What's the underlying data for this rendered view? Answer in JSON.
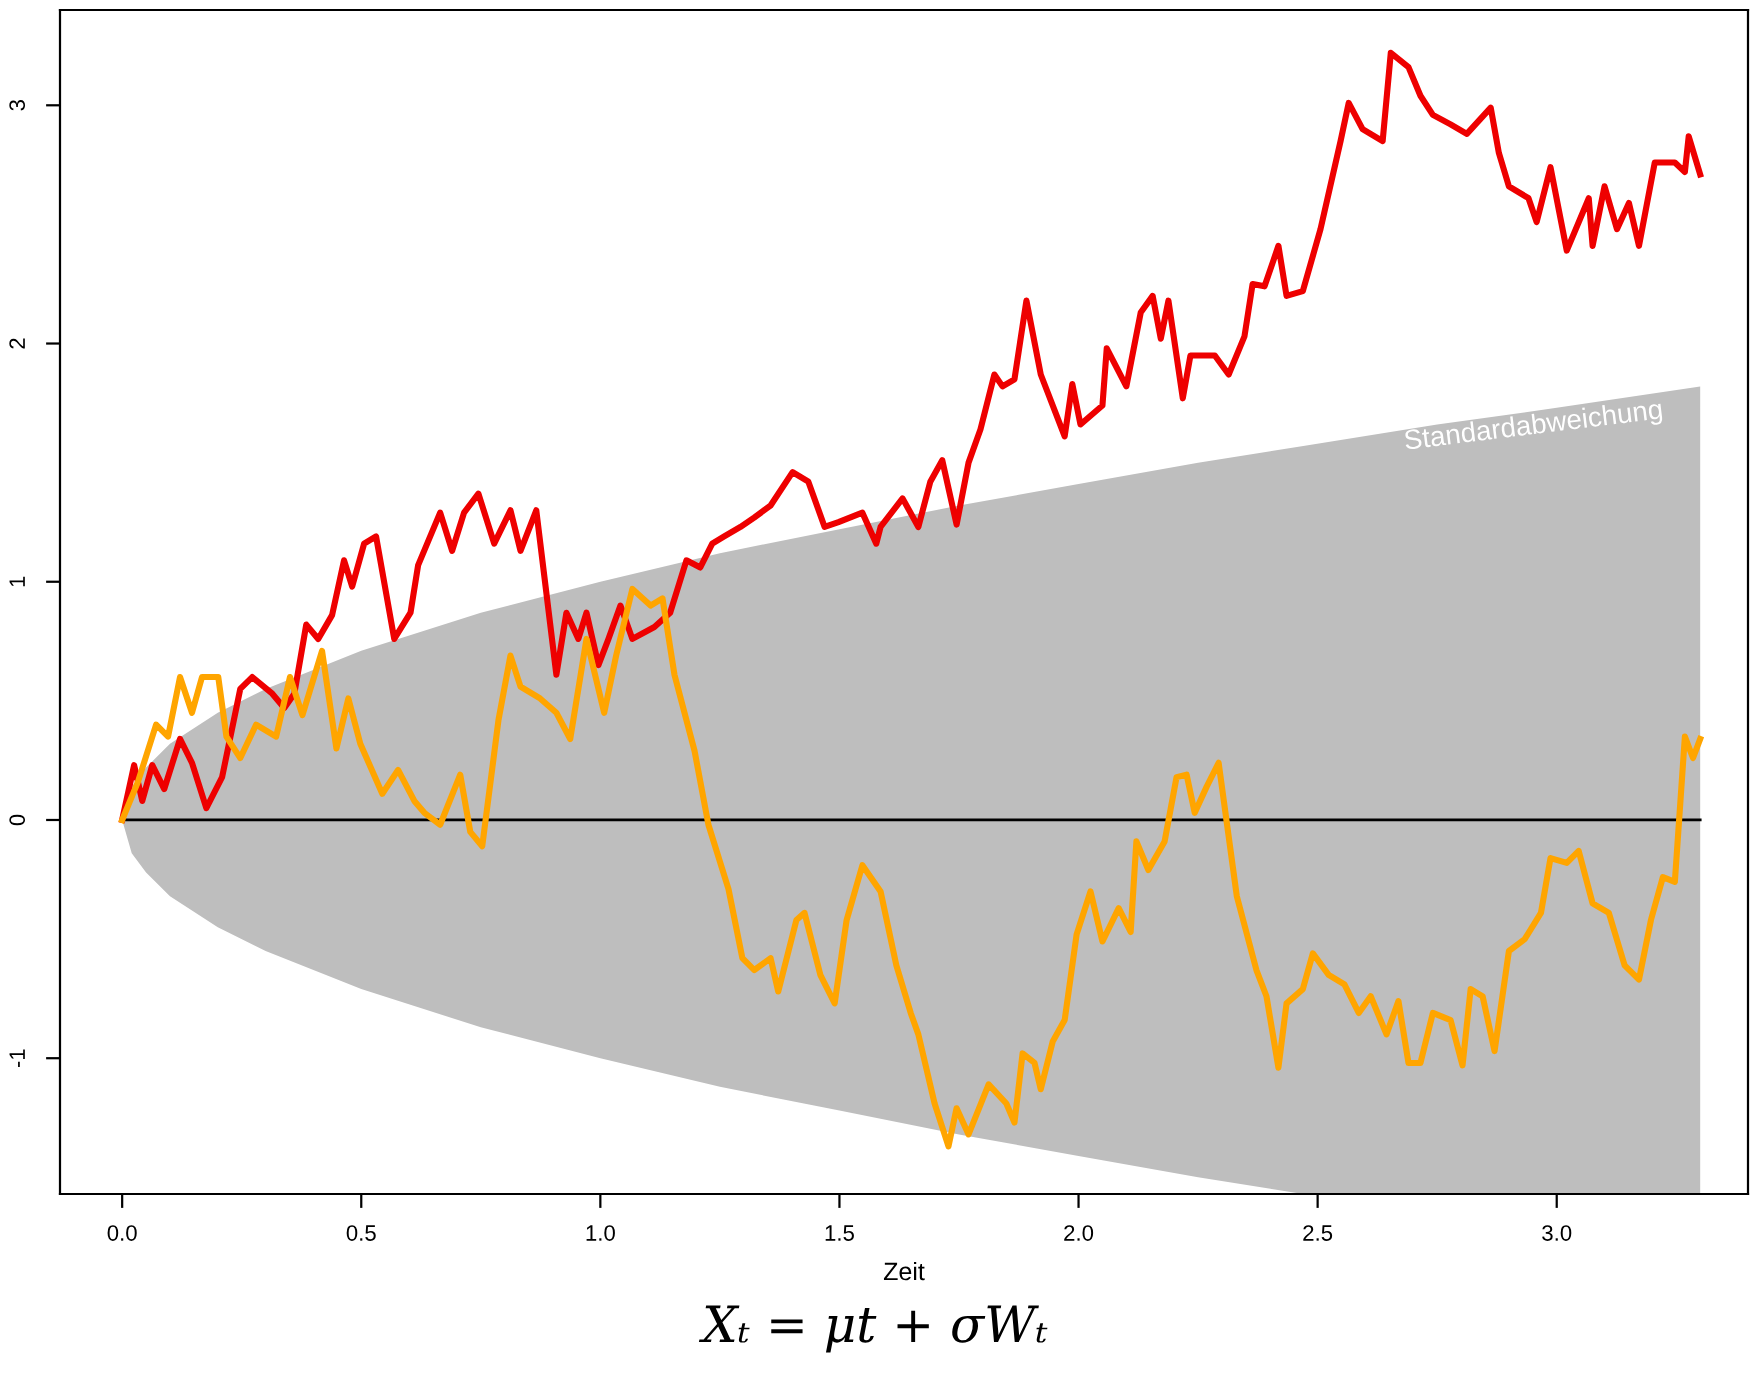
{
  "chart_data": {
    "type": "line",
    "xlabel": "Zeit",
    "xlim": [
      -0.13,
      3.4
    ],
    "ylim": [
      -1.57,
      3.4
    ],
    "xticks": [
      {
        "value": 0,
        "label": "0.0"
      },
      {
        "value": 0.5,
        "label": "0.5"
      },
      {
        "value": 1,
        "label": "1.0"
      },
      {
        "value": 1.5,
        "label": "1.5"
      },
      {
        "value": 2,
        "label": "2.0"
      },
      {
        "value": 2.5,
        "label": "2.5"
      },
      {
        "value": 3,
        "label": "3.0"
      }
    ],
    "yticks": [
      -1,
      0,
      1,
      2,
      3
    ],
    "grid": false,
    "legend": false,
    "line_style": "solid",
    "marker": "none",
    "series": [
      {
        "color": "#000000",
        "x": [
          0,
          0.02,
          0.05,
          0.1,
          0.2,
          0.3,
          0.5,
          0.75,
          1,
          1.25,
          1.5,
          1.75,
          2,
          2.25,
          2.47,
          2.75,
          3,
          3.3
        ],
        "values": [
          0,
          0,
          0,
          0,
          0,
          0,
          0,
          0,
          0,
          0,
          0,
          0,
          0,
          0,
          0,
          0,
          0,
          0
        ],
        "upper": [
          0,
          0.14,
          0.22,
          0.32,
          0.45,
          0.55,
          0.71,
          0.87,
          1.0,
          1.12,
          1.22,
          1.32,
          1.41,
          1.5,
          1.57,
          1.66,
          1.73,
          1.82
        ],
        "lower": [
          0,
          -0.14,
          -0.22,
          -0.32,
          -0.45,
          -0.55,
          -0.71,
          -0.87,
          -1.0,
          -1.12,
          -1.22,
          -1.32,
          -1.41,
          -1.5,
          -1.57,
          -1.57,
          -1.57,
          -1.57
        ]
      },
      {
        "color": "#ee0000",
        "x": [
          0,
          0.025,
          0.042,
          0.063,
          0.088,
          0.121,
          0.146,
          0.176,
          0.209,
          0.247,
          0.272,
          0.314,
          0.339,
          0.36,
          0.385,
          0.41,
          0.439,
          0.464,
          0.481,
          0.506,
          0.531,
          0.569,
          0.603,
          0.619,
          0.665,
          0.69,
          0.715,
          0.745,
          0.778,
          0.812,
          0.833,
          0.866,
          0.908,
          0.929,
          0.954,
          0.971,
          0.996,
          1.017,
          1.042,
          1.067,
          1.113,
          1.146,
          1.18,
          1.209,
          1.234,
          1.259,
          1.293,
          1.322,
          1.356,
          1.402,
          1.435,
          1.469,
          1.498,
          1.548,
          1.577,
          1.586,
          1.632,
          1.665,
          1.69,
          1.715,
          1.745,
          1.77,
          1.795,
          1.824,
          1.841,
          1.866,
          1.891,
          1.921,
          1.971,
          1.987,
          2.004,
          2.05,
          2.059,
          2.1,
          2.13,
          2.155,
          2.172,
          2.188,
          2.218,
          2.234,
          2.285,
          2.314,
          2.347,
          2.364,
          2.389,
          2.418,
          2.435,
          2.469,
          2.506,
          2.548,
          2.565,
          2.594,
          2.636,
          2.653,
          2.69,
          2.715,
          2.741,
          2.778,
          2.812,
          2.862,
          2.879,
          2.9,
          2.941,
          2.958,
          2.987,
          3.021,
          3.067,
          3.075,
          3.1,
          3.126,
          3.151,
          3.172,
          3.205,
          3.247,
          3.268,
          3.276,
          3.3
        ],
        "values": [
          0,
          0.23,
          0.08,
          0.23,
          0.13,
          0.34,
          0.24,
          0.05,
          0.18,
          0.55,
          0.6,
          0.53,
          0.47,
          0.53,
          0.82,
          0.76,
          0.86,
          1.09,
          0.98,
          1.16,
          1.19,
          0.76,
          0.87,
          1.07,
          1.29,
          1.13,
          1.29,
          1.37,
          1.16,
          1.3,
          1.13,
          1.3,
          0.61,
          0.87,
          0.76,
          0.87,
          0.65,
          0.76,
          0.9,
          0.76,
          0.81,
          0.87,
          1.09,
          1.06,
          1.16,
          1.19,
          1.23,
          1.27,
          1.32,
          1.46,
          1.42,
          1.23,
          1.25,
          1.29,
          1.16,
          1.23,
          1.35,
          1.23,
          1.42,
          1.51,
          1.24,
          1.5,
          1.64,
          1.87,
          1.82,
          1.85,
          2.18,
          1.87,
          1.61,
          1.83,
          1.66,
          1.74,
          1.98,
          1.82,
          2.13,
          2.2,
          2.02,
          2.18,
          1.77,
          1.95,
          1.95,
          1.87,
          2.03,
          2.25,
          2.24,
          2.41,
          2.2,
          2.22,
          2.48,
          2.85,
          3.01,
          2.9,
          2.85,
          3.22,
          3.16,
          3.04,
          2.96,
          2.92,
          2.88,
          2.99,
          2.8,
          2.66,
          2.61,
          2.51,
          2.74,
          2.39,
          2.61,
          2.41,
          2.66,
          2.48,
          2.59,
          2.41,
          2.76,
          2.76,
          2.72,
          2.87,
          2.71
        ]
      },
      {
        "color": "#ffa500",
        "x": [
          0,
          0.033,
          0.071,
          0.096,
          0.121,
          0.146,
          0.167,
          0.201,
          0.218,
          0.247,
          0.28,
          0.322,
          0.351,
          0.377,
          0.418,
          0.448,
          0.473,
          0.498,
          0.544,
          0.577,
          0.611,
          0.632,
          0.665,
          0.707,
          0.728,
          0.753,
          0.787,
          0.812,
          0.833,
          0.874,
          0.908,
          0.937,
          0.971,
          1.008,
          1.033,
          1.067,
          1.105,
          1.13,
          1.155,
          1.197,
          1.226,
          1.268,
          1.297,
          1.322,
          1.356,
          1.372,
          1.41,
          1.427,
          1.46,
          1.49,
          1.515,
          1.548,
          1.586,
          1.619,
          1.649,
          1.665,
          1.699,
          1.728,
          1.745,
          1.77,
          1.812,
          1.849,
          1.866,
          1.883,
          1.908,
          1.921,
          1.946,
          1.971,
          1.996,
          2.025,
          2.05,
          2.084,
          2.109,
          2.121,
          2.146,
          2.18,
          2.205,
          2.226,
          2.243,
          2.268,
          2.293,
          2.331,
          2.372,
          2.393,
          2.418,
          2.435,
          2.469,
          2.49,
          2.523,
          2.556,
          2.586,
          2.611,
          2.644,
          2.669,
          2.69,
          2.715,
          2.741,
          2.778,
          2.803,
          2.82,
          2.845,
          2.87,
          2.9,
          2.933,
          2.967,
          2.987,
          3.021,
          3.046,
          3.075,
          3.109,
          3.142,
          3.172,
          3.197,
          3.222,
          3.247,
          3.268,
          3.285,
          3.3
        ],
        "values": [
          0,
          0.16,
          0.4,
          0.35,
          0.6,
          0.45,
          0.6,
          0.6,
          0.35,
          0.26,
          0.4,
          0.35,
          0.6,
          0.44,
          0.71,
          0.3,
          0.51,
          0.32,
          0.11,
          0.21,
          0.08,
          0.03,
          -0.02,
          0.19,
          -0.05,
          -0.11,
          0.42,
          0.69,
          0.56,
          0.51,
          0.45,
          0.34,
          0.76,
          0.45,
          0.69,
          0.97,
          0.9,
          0.93,
          0.61,
          0.29,
          -0.02,
          -0.29,
          -0.58,
          -0.63,
          -0.58,
          -0.72,
          -0.42,
          -0.39,
          -0.65,
          -0.77,
          -0.42,
          -0.19,
          -0.3,
          -0.61,
          -0.81,
          -0.9,
          -1.19,
          -1.37,
          -1.21,
          -1.32,
          -1.11,
          -1.19,
          -1.27,
          -0.98,
          -1.02,
          -1.13,
          -0.93,
          -0.84,
          -0.48,
          -0.3,
          -0.51,
          -0.37,
          -0.47,
          -0.09,
          -0.21,
          -0.09,
          0.18,
          0.19,
          0.03,
          0.14,
          0.24,
          -0.32,
          -0.63,
          -0.74,
          -1.04,
          -0.77,
          -0.71,
          -0.56,
          -0.65,
          -0.69,
          -0.81,
          -0.74,
          -0.9,
          -0.76,
          -1.02,
          -1.02,
          -0.81,
          -0.84,
          -1.03,
          -0.71,
          -0.74,
          -0.97,
          -0.55,
          -0.5,
          -0.39,
          -0.16,
          -0.18,
          -0.13,
          -0.35,
          -0.39,
          -0.61,
          -0.67,
          -0.42,
          -0.24,
          -0.26,
          0.35,
          0.26,
          0.34
        ]
      }
    ],
    "annotations": [
      "Standardabweichung",
      "Xₜ = μt + σWₜ"
    ]
  }
}
